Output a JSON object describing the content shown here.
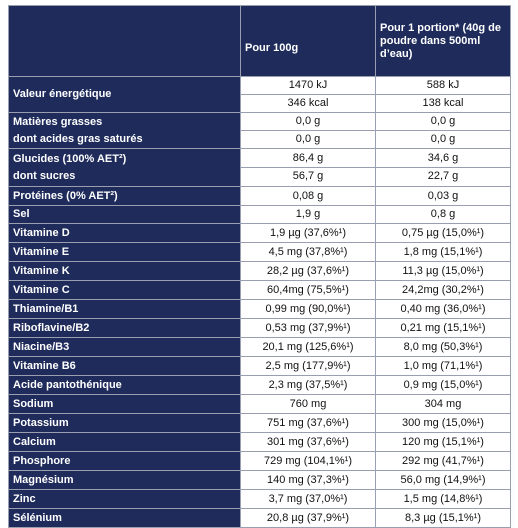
{
  "table": {
    "header": [
      "Pour 100g",
      "Pour 1 portion* (40g de poudre dans 500ml d’eau)"
    ],
    "rows": [
      {
        "labels": [
          "Valeur énergétique"
        ],
        "per_100g": [
          "1470 kJ",
          "346 kcal"
        ],
        "per_portion": [
          "588 kJ",
          "138 kcal"
        ]
      },
      {
        "labels": [
          "Matières grasses",
          "dont acides gras saturés"
        ],
        "per_100g": [
          "0,0 g",
          "0,0 g"
        ],
        "per_portion": [
          "0,0 g",
          "0,0 g"
        ]
      },
      {
        "labels": [
          "Glucides (100% AET²)",
          "dont sucres"
        ],
        "per_100g": [
          "86,4 g",
          "56,7 g"
        ],
        "per_portion": [
          "34,6 g",
          "22,7 g"
        ]
      },
      {
        "labels": [
          "Protéines (0% AET²)"
        ],
        "per_100g": [
          "0,08 g"
        ],
        "per_portion": [
          "0,03 g"
        ]
      },
      {
        "labels": [
          "Sel"
        ],
        "per_100g": [
          "1,9 g"
        ],
        "per_portion": [
          "0,8 g"
        ]
      },
      {
        "labels": [
          "Vitamine D"
        ],
        "per_100g": [
          "1,9 µg (37,6%¹)"
        ],
        "per_portion": [
          "0,75 µg (15,0%¹)"
        ]
      },
      {
        "labels": [
          "Vitamine E"
        ],
        "per_100g": [
          "4,5 mg (37,8%¹)"
        ],
        "per_portion": [
          "1,8 mg (15,1%¹)"
        ]
      },
      {
        "labels": [
          "Vitamine K"
        ],
        "per_100g": [
          "28,2 µg (37,6%¹)"
        ],
        "per_portion": [
          "11,3 µg (15,0%¹)"
        ]
      },
      {
        "labels": [
          "Vitamine C"
        ],
        "per_100g": [
          "60,4mg (75,5%¹)"
        ],
        "per_portion": [
          "24,2mg (30,2%¹)"
        ]
      },
      {
        "labels": [
          "Thiamine/B1"
        ],
        "per_100g": [
          "0,99 mg (90,0%¹)"
        ],
        "per_portion": [
          "0,40 mg (36,0%¹)"
        ]
      },
      {
        "labels": [
          "Riboflavine/B2"
        ],
        "per_100g": [
          "0,53 mg (37,9%¹)"
        ],
        "per_portion": [
          "0,21 mg (15,1%¹)"
        ]
      },
      {
        "labels": [
          "Niacine/B3"
        ],
        "per_100g": [
          "20,1 mg (125,6%¹)"
        ],
        "per_portion": [
          "8,0 mg (50,3%¹)"
        ]
      },
      {
        "labels": [
          "Vitamine B6"
        ],
        "per_100g": [
          "2,5 mg (177,9%¹)"
        ],
        "per_portion": [
          "1,0 mg (71,1%¹)"
        ]
      },
      {
        "labels": [
          "Acide pantothénique"
        ],
        "per_100g": [
          "2,3 mg (37,5%¹)"
        ],
        "per_portion": [
          "0,9 mg (15,0%¹)"
        ]
      },
      {
        "labels": [
          "Sodium"
        ],
        "per_100g": [
          "760 mg"
        ],
        "per_portion": [
          "304 mg"
        ]
      },
      {
        "labels": [
          "Potassium"
        ],
        "per_100g": [
          "751 mg (37,6%¹)"
        ],
        "per_portion": [
          "300 mg (15,0%¹)"
        ]
      },
      {
        "labels": [
          "Calcium"
        ],
        "per_100g": [
          "301 mg (37,6%¹)"
        ],
        "per_portion": [
          "120 mg (15,1%¹)"
        ]
      },
      {
        "labels": [
          "Phosphore"
        ],
        "per_100g": [
          "729 mg (104,1%¹)"
        ],
        "per_portion": [
          "292 mg (41,7%¹)"
        ]
      },
      {
        "labels": [
          "Magnésium"
        ],
        "per_100g": [
          "140 mg (37,3%¹)"
        ],
        "per_portion": [
          "56,0 mg (14,9%¹)"
        ]
      },
      {
        "labels": [
          "Zinc"
        ],
        "per_100g": [
          "3,7 mg (37,0%¹)"
        ],
        "per_portion": [
          "1,5 mg (14,8%¹)"
        ]
      },
      {
        "labels": [
          "Sélénium"
        ],
        "per_100g": [
          "20,8 µg (37,9%¹)"
        ],
        "per_portion": [
          "8,3 µg (15,1%¹)"
        ]
      }
    ]
  }
}
